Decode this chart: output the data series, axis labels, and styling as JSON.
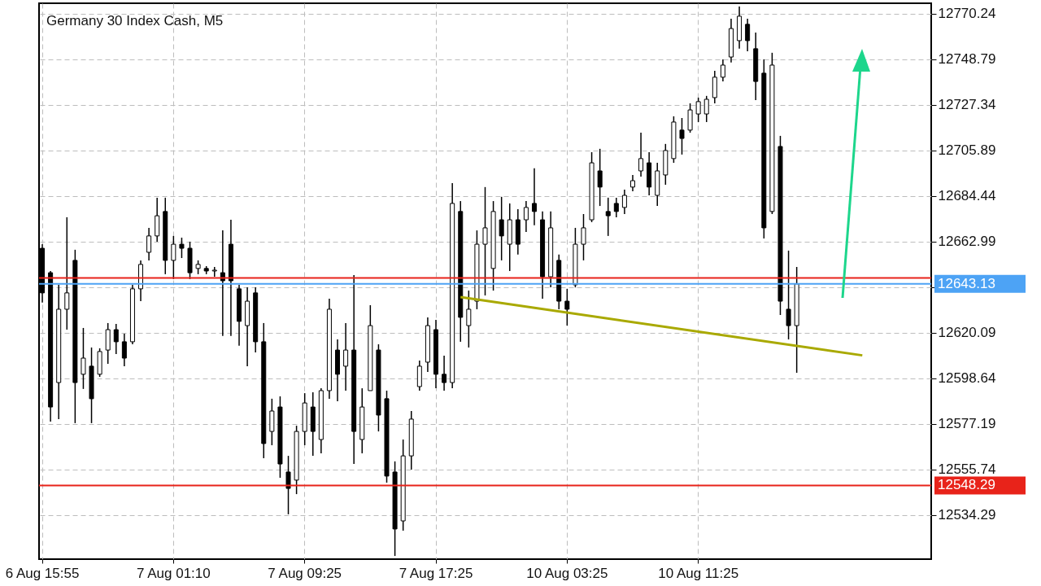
{
  "chart_data": {
    "type": "candlestick",
    "title": "Germany 30 Index Cash, M5",
    "categories": [
      "6 Aug 15:55",
      null,
      null,
      null,
      null,
      null,
      null,
      null,
      null,
      null,
      null,
      null,
      null,
      null,
      null,
      null,
      "7 Aug 01:10",
      null,
      null,
      null,
      null,
      null,
      null,
      null,
      null,
      null,
      null,
      null,
      null,
      null,
      null,
      null,
      "7 Aug 09:25",
      null,
      null,
      null,
      null,
      null,
      null,
      null,
      null,
      null,
      null,
      null,
      null,
      null,
      null,
      null,
      "7 Aug 17:25",
      null,
      null,
      null,
      null,
      null,
      null,
      null,
      null,
      null,
      null,
      null,
      null,
      null,
      null,
      null,
      "10 Aug 03:25",
      null,
      null,
      null,
      null,
      null,
      null,
      null,
      null,
      null,
      null,
      null,
      null,
      null,
      null,
      null,
      "10 Aug 11:25",
      null,
      null,
      null,
      null,
      null,
      null,
      null,
      null,
      null,
      null,
      null,
      null,
      null,
      null,
      null,
      null,
      null,
      null,
      null,
      null,
      null,
      null,
      null,
      null,
      null,
      null,
      null,
      null
    ],
    "ohlc": [
      [
        12659.9,
        12661.8,
        12634.3,
        12638.9
      ],
      [
        12648.4,
        12649.2,
        12578.3,
        12585.2
      ],
      [
        12596.7,
        12642.7,
        12579.5,
        12631.2
      ],
      [
        12631.2,
        12674.5,
        12621.6,
        12638.9
      ],
      [
        12654.2,
        12659.2,
        12577.6,
        12596.7
      ],
      [
        12600.6,
        12622.4,
        12593.7,
        12608.2
      ],
      [
        12604.4,
        12613.2,
        12577.6,
        12589.1
      ],
      [
        12600.6,
        12612.8,
        12599.4,
        12611.3
      ],
      [
        12612.0,
        12624.7,
        12605.5,
        12621.6
      ],
      [
        12621.6,
        12624.3,
        12610.1,
        12615.9
      ],
      [
        12615.9,
        12619.7,
        12604.4,
        12608.2
      ],
      [
        12615.9,
        12642.7,
        12614.7,
        12640.8
      ],
      [
        12640.8,
        12654.2,
        12635.0,
        12652.3
      ],
      [
        12658.0,
        12669.5,
        12654.2,
        12665.7
      ],
      [
        12665.7,
        12683.7,
        12663.0,
        12675.2
      ],
      [
        12677.2,
        12683.7,
        12647.7,
        12654.2
      ],
      [
        12654.2,
        12665.7,
        12645.4,
        12661.8
      ],
      [
        12661.8,
        12664.9,
        12655.3,
        12659.9
      ],
      [
        12659.9,
        12663.0,
        12645.4,
        12648.4
      ],
      [
        12650.4,
        12654.2,
        12647.7,
        12652.3
      ],
      [
        12650.4,
        12651.5,
        12647.7,
        12649.2
      ],
      [
        12649.2,
        12651.1,
        12646.5,
        12649.6
      ],
      [
        12648.4,
        12668.3,
        12618.6,
        12644.6
      ],
      [
        12661.8,
        12673.3,
        12618.6,
        12644.6
      ],
      [
        12640.8,
        12642.7,
        12614.0,
        12625.5
      ],
      [
        12623.5,
        12641.5,
        12604.4,
        12635.0
      ],
      [
        12638.9,
        12641.5,
        12610.9,
        12615.9
      ],
      [
        12615.9,
        12624.7,
        12561.1,
        12568.0
      ],
      [
        12573.7,
        12589.1,
        12567.2,
        12583.3
      ],
      [
        12585.2,
        12590.2,
        12551.9,
        12558.4
      ],
      [
        12554.6,
        12562.2,
        12534.7,
        12546.9
      ],
      [
        12550.8,
        12576.4,
        12544.2,
        12573.7
      ],
      [
        12573.7,
        12591.7,
        12567.2,
        12587.1
      ],
      [
        12585.2,
        12592.1,
        12562.2,
        12573.7
      ],
      [
        12569.9,
        12594.0,
        12563.4,
        12592.9
      ],
      [
        12592.9,
        12636.2,
        12589.1,
        12631.2
      ],
      [
        12612.0,
        12617.0,
        12587.9,
        12600.6
      ],
      [
        12604.4,
        12624.7,
        12592.9,
        12612.0
      ],
      [
        12612.0,
        12647.3,
        12558.4,
        12573.7
      ],
      [
        12569.9,
        12594.0,
        12563.4,
        12585.2
      ],
      [
        12592.9,
        12633.1,
        12592.9,
        12623.5
      ],
      [
        12612.0,
        12614.7,
        12573.7,
        12581.4
      ],
      [
        12589.1,
        12592.9,
        12549.6,
        12552.7
      ],
      [
        12554.6,
        12559.6,
        12515.1,
        12527.8
      ],
      [
        12531.6,
        12569.9,
        12527.0,
        12562.2
      ],
      [
        12562.2,
        12583.3,
        12555.7,
        12579.5
      ],
      [
        12594.8,
        12607.1,
        12592.9,
        12604.4
      ],
      [
        12606.3,
        12627.4,
        12601.7,
        12623.5
      ],
      [
        12621.6,
        12626.2,
        12594.0,
        12600.6
      ],
      [
        12600.6,
        12609.4,
        12592.9,
        12596.7
      ],
      [
        12596.7,
        12690.6,
        12594.0,
        12681.0
      ],
      [
        12677.2,
        12682.1,
        12615.9,
        12627.4
      ],
      [
        12623.5,
        12640.0,
        12613.2,
        12631.2
      ],
      [
        12635.0,
        12668.3,
        12631.2,
        12661.8
      ],
      [
        12661.8,
        12688.7,
        12637.7,
        12669.5
      ],
      [
        12650.4,
        12682.1,
        12640.0,
        12677.2
      ],
      [
        12673.3,
        12684.1,
        12654.2,
        12665.7
      ],
      [
        12661.8,
        12681.0,
        12649.2,
        12673.3
      ],
      [
        12673.3,
        12678.3,
        12656.9,
        12661.8
      ],
      [
        12673.3,
        12682.1,
        12667.6,
        12679.1
      ],
      [
        12681.0,
        12697.5,
        12670.7,
        12677.2
      ],
      [
        12673.3,
        12677.2,
        12636.2,
        12646.5
      ],
      [
        12646.5,
        12677.2,
        12641.5,
        12669.5
      ],
      [
        12654.2,
        12656.9,
        12631.2,
        12635.0
      ],
      [
        12635.0,
        12640.8,
        12623.5,
        12631.2
      ],
      [
        12642.7,
        12669.5,
        12641.5,
        12661.8
      ],
      [
        12661.8,
        12676.0,
        12654.2,
        12669.5
      ],
      [
        12673.3,
        12705.1,
        12672.2,
        12700.1
      ],
      [
        12696.3,
        12706.7,
        12679.8,
        12688.7
      ],
      [
        12677.2,
        12683.7,
        12665.7,
        12675.2
      ],
      [
        12681.0,
        12683.7,
        12674.5,
        12677.2
      ],
      [
        12679.1,
        12687.5,
        12676.0,
        12684.8
      ],
      [
        12688.7,
        12694.4,
        12686.7,
        12691.7
      ],
      [
        12696.3,
        12714.3,
        12693.6,
        12702.1
      ],
      [
        12700.1,
        12705.1,
        12684.8,
        12688.7
      ],
      [
        12684.8,
        12700.1,
        12679.8,
        12696.3
      ],
      [
        12694.4,
        12709.0,
        12689.8,
        12705.9
      ],
      [
        12702.1,
        12722.0,
        12700.1,
        12719.3
      ],
      [
        12715.5,
        12721.2,
        12704.0,
        12711.6
      ],
      [
        12715.5,
        12728.1,
        12714.3,
        12725.0
      ],
      [
        12723.1,
        12730.8,
        12719.3,
        12728.9
      ],
      [
        12723.1,
        12731.6,
        12719.3,
        12730.0
      ],
      [
        12730.8,
        12743.4,
        12728.1,
        12740.4
      ],
      [
        12740.4,
        12748.8,
        12738.4,
        12746.1
      ],
      [
        12749.9,
        12767.9,
        12747.3,
        12763.3
      ],
      [
        12757.6,
        12773.7,
        12753.8,
        12769.1
      ],
      [
        12765.3,
        12767.9,
        12752.6,
        12757.6
      ],
      [
        12753.8,
        12761.4,
        12729.6,
        12738.4
      ],
      [
        12742.3,
        12748.8,
        12664.5,
        12669.5
      ],
      [
        12677.2,
        12751.9,
        12676.0,
        12746.1
      ],
      [
        12707.8,
        12712.8,
        12628.5,
        12635.0
      ],
      [
        12631.2,
        12658.8,
        12617.0,
        12623.5
      ],
      [
        12623.5,
        12651.1,
        12601.3,
        12643.13
      ],
      null,
      null,
      null,
      null,
      null,
      null,
      null,
      null,
      null,
      null,
      null,
      null,
      null,
      null,
      null,
      null
    ],
    "series": [
      {
        "type": "line",
        "color": "#a9a900",
        "values": [
          null,
          null,
          null,
          null,
          null,
          null,
          null,
          null,
          null,
          null,
          null,
          null,
          null,
          null,
          null,
          null,
          null,
          null,
          null,
          null,
          null,
          null,
          null,
          null,
          null,
          null,
          null,
          null,
          null,
          null,
          null,
          null,
          null,
          null,
          null,
          null,
          null,
          null,
          null,
          null,
          null,
          null,
          null,
          null,
          null,
          null,
          null,
          null,
          null,
          null,
          null,
          12636.9,
          null,
          null,
          null,
          null,
          null,
          null,
          null,
          null,
          null,
          null,
          null,
          null,
          null,
          null,
          null,
          null,
          null,
          null,
          null,
          null,
          null,
          null,
          null,
          null,
          null,
          null,
          null,
          null,
          null,
          null,
          null,
          null,
          null,
          null,
          null,
          null,
          null,
          null,
          null,
          null,
          null,
          null,
          null,
          null,
          null,
          null,
          null,
          null,
          12609.5,
          null,
          null,
          null,
          null,
          null,
          null,
          null,
          null
        ]
      }
    ],
    "ylim": [
      12513.6,
      12775.2
    ],
    "yticks": [
      12534.29,
      12555.74,
      12577.19,
      12598.64,
      12620.09,
      {
        "value": 12641.54,
        "label": null
      },
      12662.99,
      12684.44,
      12705.89,
      12727.34,
      12748.79,
      12770.24
    ],
    "ref_lines": [
      {
        "axis": "y",
        "value": 12645.9,
        "label": null,
        "color": "#e8231a"
      },
      {
        "axis": "y",
        "value": 12643.13,
        "label": "12643.13",
        "color": "#4da3f5"
      },
      {
        "axis": "y",
        "value": 12548.29,
        "label": "12548.29",
        "color": "#e8231a"
      }
    ],
    "grid": true
  }
}
